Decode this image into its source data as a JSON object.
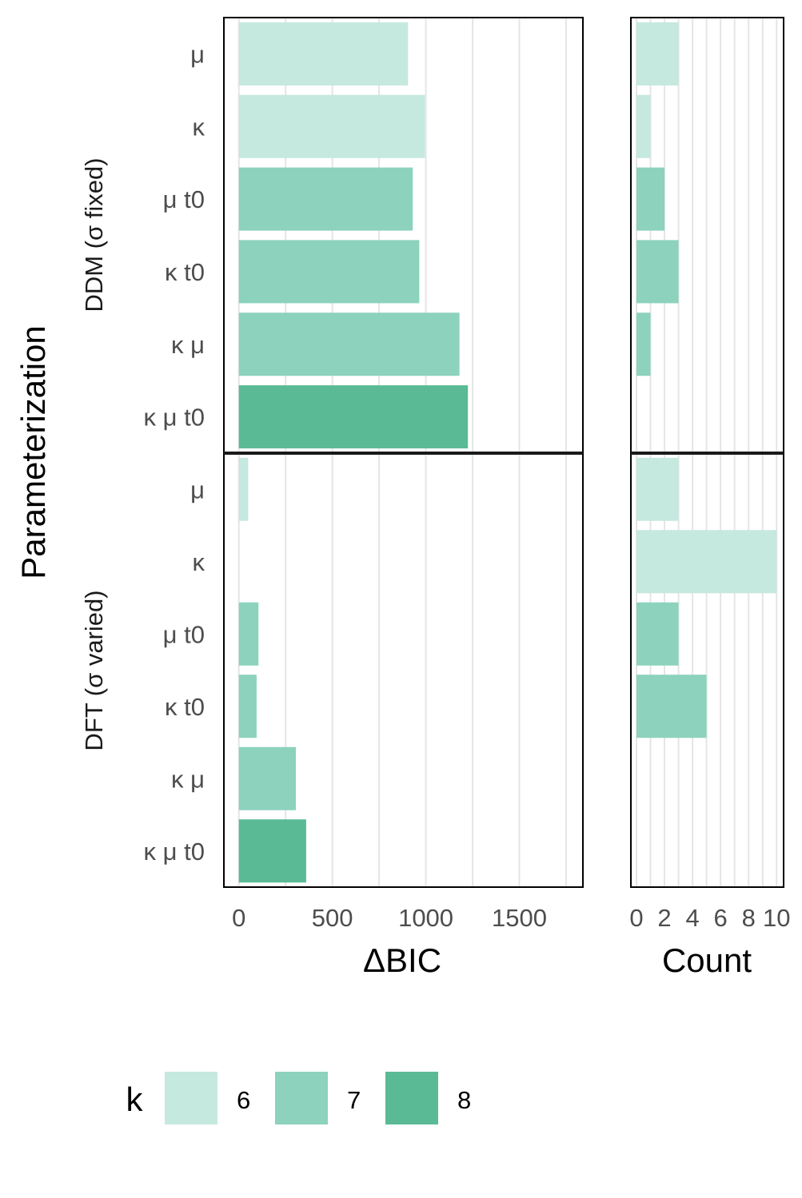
{
  "chart_data": [
    {
      "type": "bar",
      "orientation": "horizontal",
      "xlabel": "ΔBIC",
      "ylabel": "Parameterization",
      "xlim": [
        -80,
        1840
      ],
      "xticks": [
        0,
        500,
        1000,
        1500
      ],
      "grid": true,
      "panels": [
        {
          "name": "DDM (σ fixed)",
          "categories": [
            "μ",
            "κ",
            "μ t0",
            "κ t0",
            "κ μ",
            "κ μ t0"
          ],
          "values": [
            905,
            995,
            930,
            965,
            1180,
            1225
          ],
          "k": [
            6,
            6,
            7,
            7,
            7,
            8
          ]
        },
        {
          "name": "DFT (σ varied)",
          "categories": [
            "μ",
            "κ",
            "μ t0",
            "κ t0",
            "κ μ",
            "κ μ t0"
          ],
          "values": [
            50,
            0,
            105,
            95,
            305,
            360
          ],
          "k": [
            6,
            6,
            7,
            7,
            7,
            8
          ]
        }
      ]
    },
    {
      "type": "bar",
      "orientation": "horizontal",
      "xlabel": "Count",
      "xlim": [
        -0.4,
        10.5
      ],
      "xticks": [
        0,
        2,
        4,
        6,
        8,
        10
      ],
      "grid": true,
      "panels": [
        {
          "name": "DDM (σ fixed)",
          "categories": [
            "μ",
            "κ",
            "μ t0",
            "κ t0",
            "κ μ",
            "κ μ t0"
          ],
          "values": [
            3,
            1,
            2,
            3,
            1,
            0
          ],
          "k": [
            6,
            6,
            7,
            7,
            7,
            8
          ]
        },
        {
          "name": "DFT (σ varied)",
          "categories": [
            "μ",
            "κ",
            "μ t0",
            "κ t0",
            "κ μ",
            "κ μ t0"
          ],
          "values": [
            3,
            10,
            3,
            5,
            0,
            0
          ],
          "k": [
            6,
            6,
            7,
            7,
            7,
            8
          ]
        }
      ]
    }
  ],
  "legend": {
    "title": "k",
    "placement": "bottom",
    "items": [
      {
        "label": "6",
        "color": "#c5e8df"
      },
      {
        "label": "7",
        "color": "#8cd2bd"
      },
      {
        "label": "8",
        "color": "#5aba95"
      }
    ]
  },
  "colors": {
    "k6": "#c5e8df",
    "k7": "#8cd2bd",
    "k8": "#5aba95",
    "grid": "#e5e5e5",
    "frame": "#000000"
  }
}
